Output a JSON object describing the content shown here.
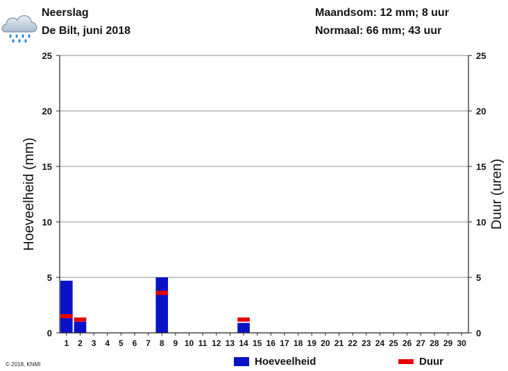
{
  "header": {
    "title": "Neerslag",
    "subtitle": "De Bilt, juni 2018",
    "month_sum": "Maandsom: 12 mm; 8 uur",
    "normal": "Normaal: 66 mm; 43 uur"
  },
  "icons": {
    "weather": "rain-cloud-icon"
  },
  "colors": {
    "amount": "#0a12c8",
    "duration": "#e80000",
    "grid": "#8c8c8c"
  },
  "copyright": "© 2018, KNMI",
  "legend": {
    "amount": "Hoeveelheid",
    "duration": "Duur"
  },
  "chart_data": {
    "type": "bar",
    "ylabel": "Hoeveelheid (mm)",
    "y2label": "Duur (uren)",
    "ylim": [
      0,
      25
    ],
    "y2lim": [
      0,
      25
    ],
    "yticks": [
      0,
      5,
      10,
      15,
      20,
      25
    ],
    "categories": [
      "1",
      "2",
      "3",
      "4",
      "5",
      "6",
      "7",
      "8",
      "9",
      "10",
      "11",
      "12",
      "13",
      "14",
      "15",
      "16",
      "17",
      "18",
      "19",
      "20",
      "21",
      "22",
      "23",
      "24",
      "25",
      "26",
      "27",
      "28",
      "29",
      "30"
    ],
    "series": [
      {
        "name": "Hoeveelheid",
        "kind": "bar",
        "values": [
          4.7,
          1.0,
          0,
          0,
          0,
          0,
          0,
          5.0,
          0,
          0,
          0,
          0,
          0,
          0.9,
          0,
          0,
          0,
          0,
          0,
          0,
          0,
          0,
          0,
          0,
          0,
          0,
          0,
          0,
          0,
          0
        ]
      },
      {
        "name": "Duur",
        "kind": "marker",
        "values": [
          1.5,
          1.2,
          0,
          0,
          0,
          0,
          0,
          3.6,
          0,
          0,
          0,
          0,
          0,
          1.2,
          0,
          0,
          0,
          0,
          0,
          0,
          0,
          0,
          0,
          0,
          0,
          0,
          0,
          0,
          0,
          0
        ]
      }
    ],
    "grid": true,
    "legend_position": "bottom"
  }
}
